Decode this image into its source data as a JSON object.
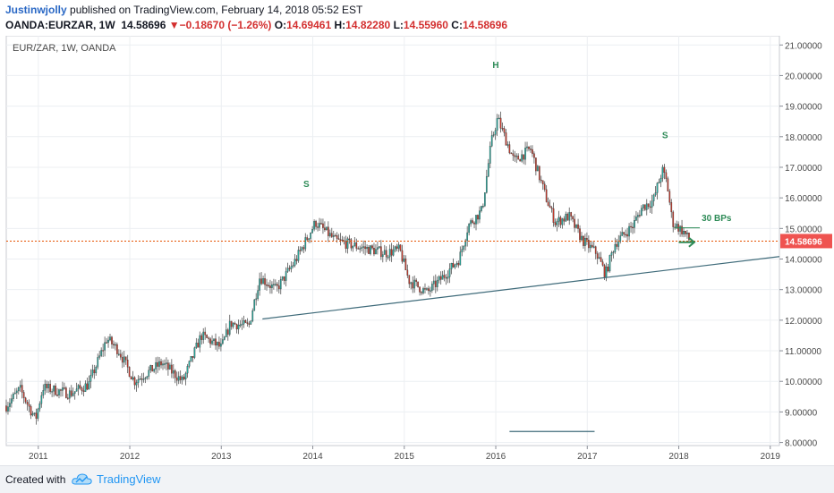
{
  "header": {
    "author": "Justinwjolly",
    "published_text": "published on TradingView.com, February 14, 2018 05:52 EST",
    "symbol": "OANDA:EURZAR, 1W",
    "last": "14.58696",
    "change_arrow": "▼",
    "change": "−0.18670 (−1.26%)",
    "open_label": "O:",
    "open": "14.69461",
    "high_label": "H:",
    "high": "14.82280",
    "low_label": "L:",
    "low": "14.55960",
    "close_label": "C:",
    "close": "14.58696"
  },
  "footer": {
    "created_with": "Created with",
    "brand": "TradingView",
    "logo_icon": "tradingview-cloud-icon"
  },
  "chart_data": {
    "type": "candlestick",
    "title": "EUR/ZAR, 1W, OANDA",
    "ylim": [
      7.9,
      21.3
    ],
    "xlim": [
      2010.65,
      2019.1
    ],
    "grid": true,
    "colors": {
      "up": "#26a69a",
      "down": "#c0392b",
      "wick": "#555555",
      "trendline": "#3f6b7a",
      "price_line": "#e65100",
      "annotation": "#2e8b57"
    },
    "y_ticks": [
      "8.00000",
      "9.00000",
      "10.00000",
      "11.00000",
      "12.00000",
      "13.00000",
      "14.00000",
      "15.00000",
      "16.00000",
      "17.00000",
      "18.00000",
      "19.00000",
      "20.00000",
      "21.00000"
    ],
    "x_ticks": [
      "2011",
      "2012",
      "2013",
      "2014",
      "2015",
      "2016",
      "2017",
      "2018",
      "2019"
    ],
    "last_price": 14.58696,
    "last_price_label": "14.58696",
    "price_path": [
      {
        "x": 2010.65,
        "y": 9.2
      },
      {
        "x": 2010.8,
        "y": 9.75
      },
      {
        "x": 2010.97,
        "y": 8.75
      },
      {
        "x": 2011.05,
        "y": 9.8
      },
      {
        "x": 2011.35,
        "y": 9.6
      },
      {
        "x": 2011.55,
        "y": 9.9
      },
      {
        "x": 2011.75,
        "y": 11.4
      },
      {
        "x": 2011.88,
        "y": 11.0
      },
      {
        "x": 2012.05,
        "y": 10.0
      },
      {
        "x": 2012.35,
        "y": 10.6
      },
      {
        "x": 2012.58,
        "y": 10.0
      },
      {
        "x": 2012.78,
        "y": 11.5
      },
      {
        "x": 2013.0,
        "y": 11.1
      },
      {
        "x": 2013.1,
        "y": 11.9
      },
      {
        "x": 2013.3,
        "y": 11.8
      },
      {
        "x": 2013.42,
        "y": 13.4
      },
      {
        "x": 2013.6,
        "y": 13.0
      },
      {
        "x": 2013.8,
        "y": 13.9
      },
      {
        "x": 2014.03,
        "y": 15.2
      },
      {
        "x": 2014.25,
        "y": 14.6
      },
      {
        "x": 2014.5,
        "y": 14.4
      },
      {
        "x": 2014.8,
        "y": 14.2
      },
      {
        "x": 2014.95,
        "y": 14.3
      },
      {
        "x": 2015.05,
        "y": 13.3
      },
      {
        "x": 2015.25,
        "y": 12.9
      },
      {
        "x": 2015.45,
        "y": 13.5
      },
      {
        "x": 2015.6,
        "y": 14.0
      },
      {
        "x": 2015.7,
        "y": 15.1
      },
      {
        "x": 2015.85,
        "y": 15.6
      },
      {
        "x": 2015.95,
        "y": 17.8
      },
      {
        "x": 2016.02,
        "y": 18.6
      },
      {
        "x": 2016.2,
        "y": 17.2
      },
      {
        "x": 2016.38,
        "y": 17.6
      },
      {
        "x": 2016.55,
        "y": 16.0
      },
      {
        "x": 2016.65,
        "y": 15.2
      },
      {
        "x": 2016.8,
        "y": 15.4
      },
      {
        "x": 2016.95,
        "y": 14.6
      },
      {
        "x": 2017.1,
        "y": 14.2
      },
      {
        "x": 2017.2,
        "y": 13.5
      },
      {
        "x": 2017.3,
        "y": 14.5
      },
      {
        "x": 2017.5,
        "y": 15.1
      },
      {
        "x": 2017.6,
        "y": 15.7
      },
      {
        "x": 2017.72,
        "y": 15.9
      },
      {
        "x": 2017.82,
        "y": 16.9
      },
      {
        "x": 2017.87,
        "y": 16.5
      },
      {
        "x": 2017.93,
        "y": 15.2
      },
      {
        "x": 2018.05,
        "y": 14.9
      },
      {
        "x": 2018.12,
        "y": 14.59
      }
    ],
    "trendline": {
      "x1": 2013.45,
      "y1": 12.04,
      "x2": 2019.1,
      "y2": 14.08
    },
    "hline_short": {
      "x1": 2016.15,
      "x2": 2017.08,
      "y": 8.36
    },
    "target_line": {
      "x1": 2017.95,
      "x2": 2018.23,
      "y": 15.02
    },
    "annotations": [
      {
        "text": "S",
        "x": 2013.93,
        "y": 16.35
      },
      {
        "text": "H",
        "x": 2016.0,
        "y": 20.25
      },
      {
        "text": "S",
        "x": 2017.85,
        "y": 17.95
      },
      {
        "text": "30 BPs",
        "x": 2018.25,
        "y": 15.25
      }
    ],
    "arrow": {
      "x1": 2018.0,
      "y1": 14.55,
      "x2": 2018.16,
      "y2": 14.55
    }
  }
}
